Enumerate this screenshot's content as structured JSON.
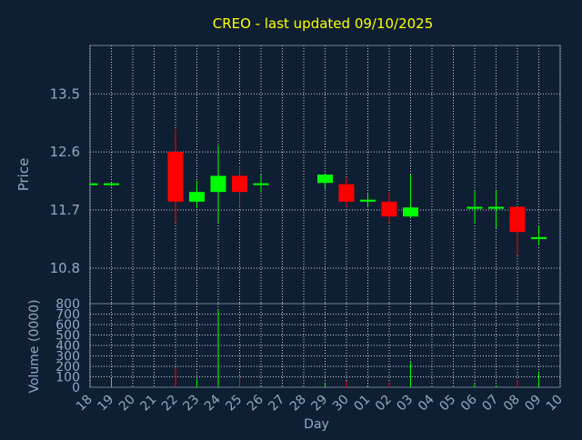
{
  "colors": {
    "background": "#0f1f33",
    "title": "#ffff00",
    "axis_text": "#8fa8c8",
    "grid": "#c8d0dc",
    "up": "#00ff00",
    "down": "#ff0000"
  },
  "chart_data": [
    {
      "type": "candlestick",
      "title": "CREO - last updated 09/10/2025",
      "ylabel": "Price",
      "ylim": [
        10.25,
        14.25
      ],
      "y_ticks": [
        "10.8",
        "11.7",
        "12.6",
        "13.5"
      ],
      "y_tick_values": [
        10.8,
        11.7,
        12.6,
        13.5
      ],
      "grid": true,
      "x": [
        "18",
        "19",
        "20",
        "21",
        "22",
        "23",
        "24",
        "25",
        "26",
        "27",
        "28",
        "29",
        "30",
        "01",
        "02",
        "03",
        "04",
        "05",
        "06",
        "07",
        "08",
        "09",
        "10"
      ],
      "candles": [
        {
          "day": "18",
          "open": 12.1,
          "high": 12.1,
          "low": 12.1,
          "close": 12.1
        },
        {
          "day": "19",
          "open": 12.1,
          "high": 12.12,
          "low": 12.07,
          "close": 12.1
        },
        {
          "day": "22",
          "open": 12.6,
          "high": 12.95,
          "low": 11.5,
          "close": 11.83
        },
        {
          "day": "23",
          "open": 11.83,
          "high": 12.15,
          "low": 11.73,
          "close": 11.98
        },
        {
          "day": "24",
          "open": 11.98,
          "high": 12.7,
          "low": 11.5,
          "close": 12.23
        },
        {
          "day": "25",
          "open": 12.23,
          "high": 12.4,
          "low": 11.75,
          "close": 11.98
        },
        {
          "day": "26",
          "open": 12.08,
          "high": 12.25,
          "low": 11.98,
          "close": 12.1
        },
        {
          "day": "29",
          "open": 12.12,
          "high": 12.25,
          "low": 12.02,
          "close": 12.25
        },
        {
          "day": "30",
          "open": 12.1,
          "high": 12.2,
          "low": 11.75,
          "close": 11.83
        },
        {
          "day": "01",
          "open": 11.83,
          "high": 11.95,
          "low": 11.75,
          "close": 11.86
        },
        {
          "day": "02",
          "open": 11.83,
          "high": 11.98,
          "low": 11.5,
          "close": 11.6
        },
        {
          "day": "03",
          "open": 11.6,
          "high": 12.25,
          "low": 11.58,
          "close": 11.74
        },
        {
          "day": "06",
          "open": 11.72,
          "high": 12.0,
          "low": 11.5,
          "close": 11.75
        },
        {
          "day": "07",
          "open": 11.72,
          "high": 12.0,
          "low": 11.42,
          "close": 11.75
        },
        {
          "day": "08",
          "open": 11.75,
          "high": 11.75,
          "low": 11.0,
          "close": 11.36
        },
        {
          "day": "09",
          "open": 11.25,
          "high": 11.45,
          "low": 11.15,
          "close": 11.28
        }
      ]
    },
    {
      "type": "bar",
      "xlabel": "Day",
      "ylabel": "Volume (0000)",
      "ylim": [
        0,
        800
      ],
      "y_ticks": [
        "0",
        "100",
        "200",
        "300",
        "400",
        "500",
        "600",
        "700",
        "800"
      ],
      "y_tick_values": [
        0,
        100,
        200,
        300,
        400,
        500,
        600,
        700,
        800
      ],
      "categories": [
        "18",
        "19",
        "20",
        "21",
        "22",
        "23",
        "24",
        "25",
        "26",
        "27",
        "28",
        "29",
        "30",
        "01",
        "02",
        "03",
        "04",
        "05",
        "06",
        "07",
        "08",
        "09",
        "10"
      ],
      "values": [
        5,
        90,
        0,
        0,
        190,
        80,
        740,
        110,
        5,
        0,
        0,
        40,
        60,
        10,
        50,
        240,
        0,
        0,
        30,
        20,
        70,
        150,
        0
      ],
      "directions": [
        "up",
        "up",
        "",
        "",
        "down",
        "up",
        "up",
        "down",
        "up",
        "",
        "",
        "up",
        "down",
        "up",
        "down",
        "up",
        "",
        "",
        "up",
        "up",
        "down",
        "up",
        ""
      ]
    }
  ]
}
